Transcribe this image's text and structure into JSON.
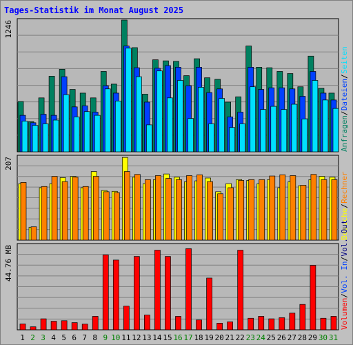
{
  "title": "Tages-Statistik im Monat August 2025",
  "colors": {
    "title": "#0000ff",
    "background": "#c0c0c0",
    "plot_bg": "#b8b8b8",
    "grid": "#808080",
    "anfragen": "#008060",
    "dateien": "#0040ff",
    "seiten": "#00e0ff",
    "besuche": "#ffff00",
    "rechner": "#ff8000",
    "volumen": "#ff0000",
    "day_weekday": "#000000",
    "day_weekend": "#008000",
    "right_label_sep": "#000000",
    "volumen_out": "#000080"
  },
  "chart_data": [
    {
      "type": "bar",
      "name": "top",
      "max_label": "1246",
      "ymax": 1246,
      "categories": [
        "1",
        "2",
        "3",
        "4",
        "5",
        "6",
        "7",
        "8",
        "9",
        "10",
        "11",
        "12",
        "13",
        "14",
        "15",
        "16",
        "17",
        "18",
        "19",
        "20",
        "21",
        "22",
        "23",
        "24",
        "25",
        "26",
        "27",
        "28",
        "29",
        "30",
        "31"
      ],
      "weekend": [
        false,
        true,
        true,
        false,
        false,
        false,
        false,
        false,
        true,
        true,
        false,
        false,
        false,
        false,
        false,
        true,
        true,
        false,
        false,
        false,
        false,
        false,
        true,
        true,
        false,
        false,
        false,
        false,
        false,
        true,
        true
      ],
      "series": [
        {
          "name": "Anfragen",
          "values": [
            475,
            285,
            510,
            715,
            780,
            590,
            555,
            510,
            760,
            640,
            1246,
            985,
            545,
            870,
            860,
            855,
            720,
            880,
            700,
            685,
            470,
            520,
            1000,
            800,
            795,
            760,
            740,
            615,
            905,
            600,
            555
          ]
        },
        {
          "name": "Dateien",
          "values": [
            345,
            275,
            355,
            345,
            710,
            425,
            435,
            375,
            625,
            555,
            1000,
            795,
            470,
            790,
            815,
            800,
            625,
            800,
            560,
            595,
            330,
            375,
            800,
            590,
            605,
            605,
            595,
            525,
            760,
            555,
            490
          ]
        },
        {
          "name": "Seiten",
          "values": [
            290,
            250,
            265,
            300,
            540,
            330,
            380,
            345,
            595,
            480,
            980,
            710,
            255,
            765,
            510,
            675,
            315,
            610,
            265,
            505,
            230,
            265,
            615,
            400,
            430,
            400,
            450,
            310,
            675,
            490,
            410
          ]
        }
      ],
      "right_labels": [
        {
          "text": "Anfragen",
          "color": "anfragen"
        },
        {
          "text": "Dateien",
          "color": "dateien"
        },
        {
          "text": "Seiten",
          "color": "seiten"
        }
      ]
    },
    {
      "type": "bar",
      "name": "middle",
      "max_label": "207",
      "ymax": 207,
      "series": [
        {
          "name": "Besuche",
          "values": [
            140,
            32,
            130,
            140,
            155,
            158,
            130,
            170,
            123,
            121,
            205,
            156,
            140,
            150,
            164,
            156,
            145,
            147,
            154,
            120,
            140,
            150,
            148,
            140,
            150,
            130,
            145,
            135,
            150,
            158,
            156
          ]
        },
        {
          "name": "Rechner",
          "values": [
            143,
            33,
            133,
            158,
            145,
            156,
            133,
            158,
            120,
            118,
            170,
            163,
            150,
            160,
            153,
            150,
            160,
            162,
            145,
            115,
            130,
            148,
            150,
            150,
            159,
            162,
            160,
            136,
            163,
            150,
            150
          ]
        }
      ],
      "right_labels": [
        {
          "text": "Besuche",
          "color": "besuche"
        },
        {
          "text": "Rechner",
          "color": "rechner"
        }
      ]
    },
    {
      "type": "bar",
      "name": "bottom",
      "max_label": "44.76 MB",
      "ymax": 44.76,
      "series": [
        {
          "name": "Volumen",
          "values": [
            3.1,
            1.6,
            5.8,
            4.5,
            4.8,
            3.8,
            3.0,
            7.1,
            39.5,
            36.8,
            12.5,
            38.7,
            7.8,
            42.0,
            38.7,
            7.1,
            42.8,
            5.2,
            27.3,
            3.5,
            4.2,
            42.0,
            6.1,
            7.1,
            5.8,
            6.4,
            8.8,
            13.4,
            34.0,
            6.1,
            7.1
          ]
        }
      ],
      "right_labels": [
        {
          "text": "Volumen",
          "color": "volumen"
        },
        {
          "text": "Vol. In",
          "color": "dateien"
        },
        {
          "text": "Vol. Out",
          "color": "volumen_out"
        }
      ]
    }
  ]
}
